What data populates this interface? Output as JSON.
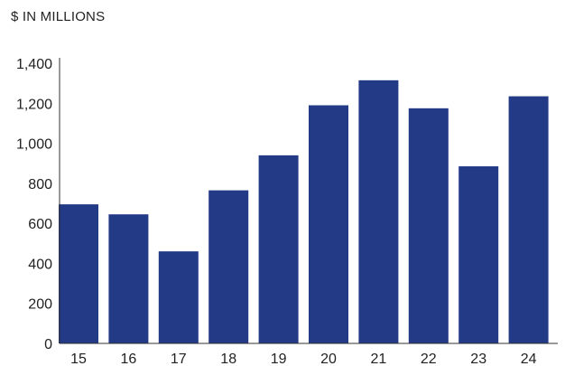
{
  "chart_data": {
    "type": "bar",
    "title": "$ IN MILLIONS",
    "categories": [
      "15",
      "16",
      "17",
      "18",
      "19",
      "20",
      "21",
      "22",
      "23",
      "24"
    ],
    "values": [
      695,
      645,
      460,
      765,
      940,
      1190,
      1315,
      1175,
      885,
      1235
    ],
    "y_ticks": [
      "0",
      "200",
      "400",
      "600",
      "800",
      "1,000",
      "1,200",
      "1,400"
    ],
    "ylim": [
      0,
      1400
    ],
    "xlabel": "",
    "ylabel": "",
    "grid": false,
    "colors": {
      "bar": "#233a86",
      "axis": "#333333"
    }
  }
}
